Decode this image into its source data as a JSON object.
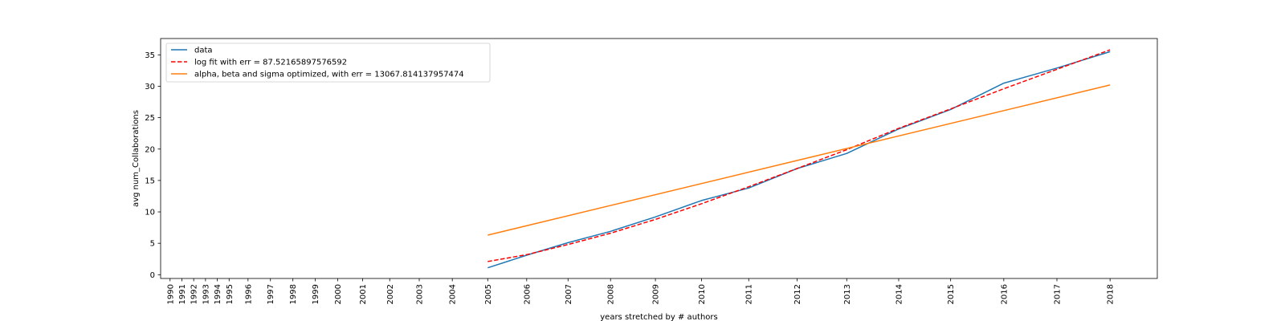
{
  "chart_data": {
    "type": "line",
    "xlabel": "years stretched by # authors",
    "ylabel": "avg num_Collaborations",
    "x_tick_labels": [
      "1990",
      "1991",
      "1992",
      "1993",
      "1994",
      "1995",
      "1996",
      "1997",
      "1998",
      "1999",
      "2000",
      "2001",
      "2002",
      "2003",
      "2004",
      "2005",
      "2006",
      "2007",
      "2008",
      "2009",
      "2010",
      "2011",
      "2012",
      "2013",
      "2014",
      "2015",
      "2016",
      "2017",
      "2018"
    ],
    "x_tick_positions": [
      0,
      1,
      2,
      3,
      4,
      5,
      6.6,
      8.5,
      10.4,
      12.3,
      14.2,
      16.3,
      18.6,
      21.1,
      23.9,
      26.9,
      30.2,
      33.7,
      37.3,
      41.1,
      45.0,
      49.0,
      53.1,
      57.3,
      61.7,
      66.1,
      70.6,
      75.1,
      79.6
    ],
    "xlim": [
      -0.8,
      83.6
    ],
    "ylim": [
      -0.6,
      37.6
    ],
    "y_ticks": [
      0,
      5,
      10,
      15,
      20,
      25,
      30,
      35
    ],
    "grid": false,
    "legend_position": "top-left",
    "series": [
      {
        "name": "data",
        "color": "#1f77b4",
        "style": "solid",
        "x": [
          26.9,
          30.2,
          33.7,
          37.3,
          41.1,
          45.0,
          49.0,
          53.1,
          57.3,
          61.7,
          66.1,
          70.6,
          75.1,
          79.6
        ],
        "y": [
          1.1,
          3.1,
          5.1,
          6.9,
          9.2,
          11.8,
          13.8,
          16.9,
          19.3,
          23.2,
          26.3,
          30.5,
          32.9,
          35.5
        ]
      },
      {
        "name": "log fit with err = 87.52165897576592",
        "color": "#ff0000",
        "style": "dashed",
        "x": [
          26.9,
          30.2,
          33.7,
          37.3,
          41.1,
          45.0,
          49.0,
          53.1,
          57.3,
          61.7,
          66.1,
          70.6,
          75.1,
          79.6
        ],
        "y": [
          2.1,
          3.2,
          4.8,
          6.6,
          8.8,
          11.3,
          14.0,
          16.9,
          19.9,
          23.3,
          26.4,
          29.6,
          32.7,
          35.8
        ]
      },
      {
        "name": "alpha, beta and sigma optimized, with err = 13067.814137957474",
        "color": "#ff7f0e",
        "style": "solid",
        "x": [
          26.9,
          79.6
        ],
        "y": [
          6.3,
          30.2
        ]
      }
    ]
  }
}
